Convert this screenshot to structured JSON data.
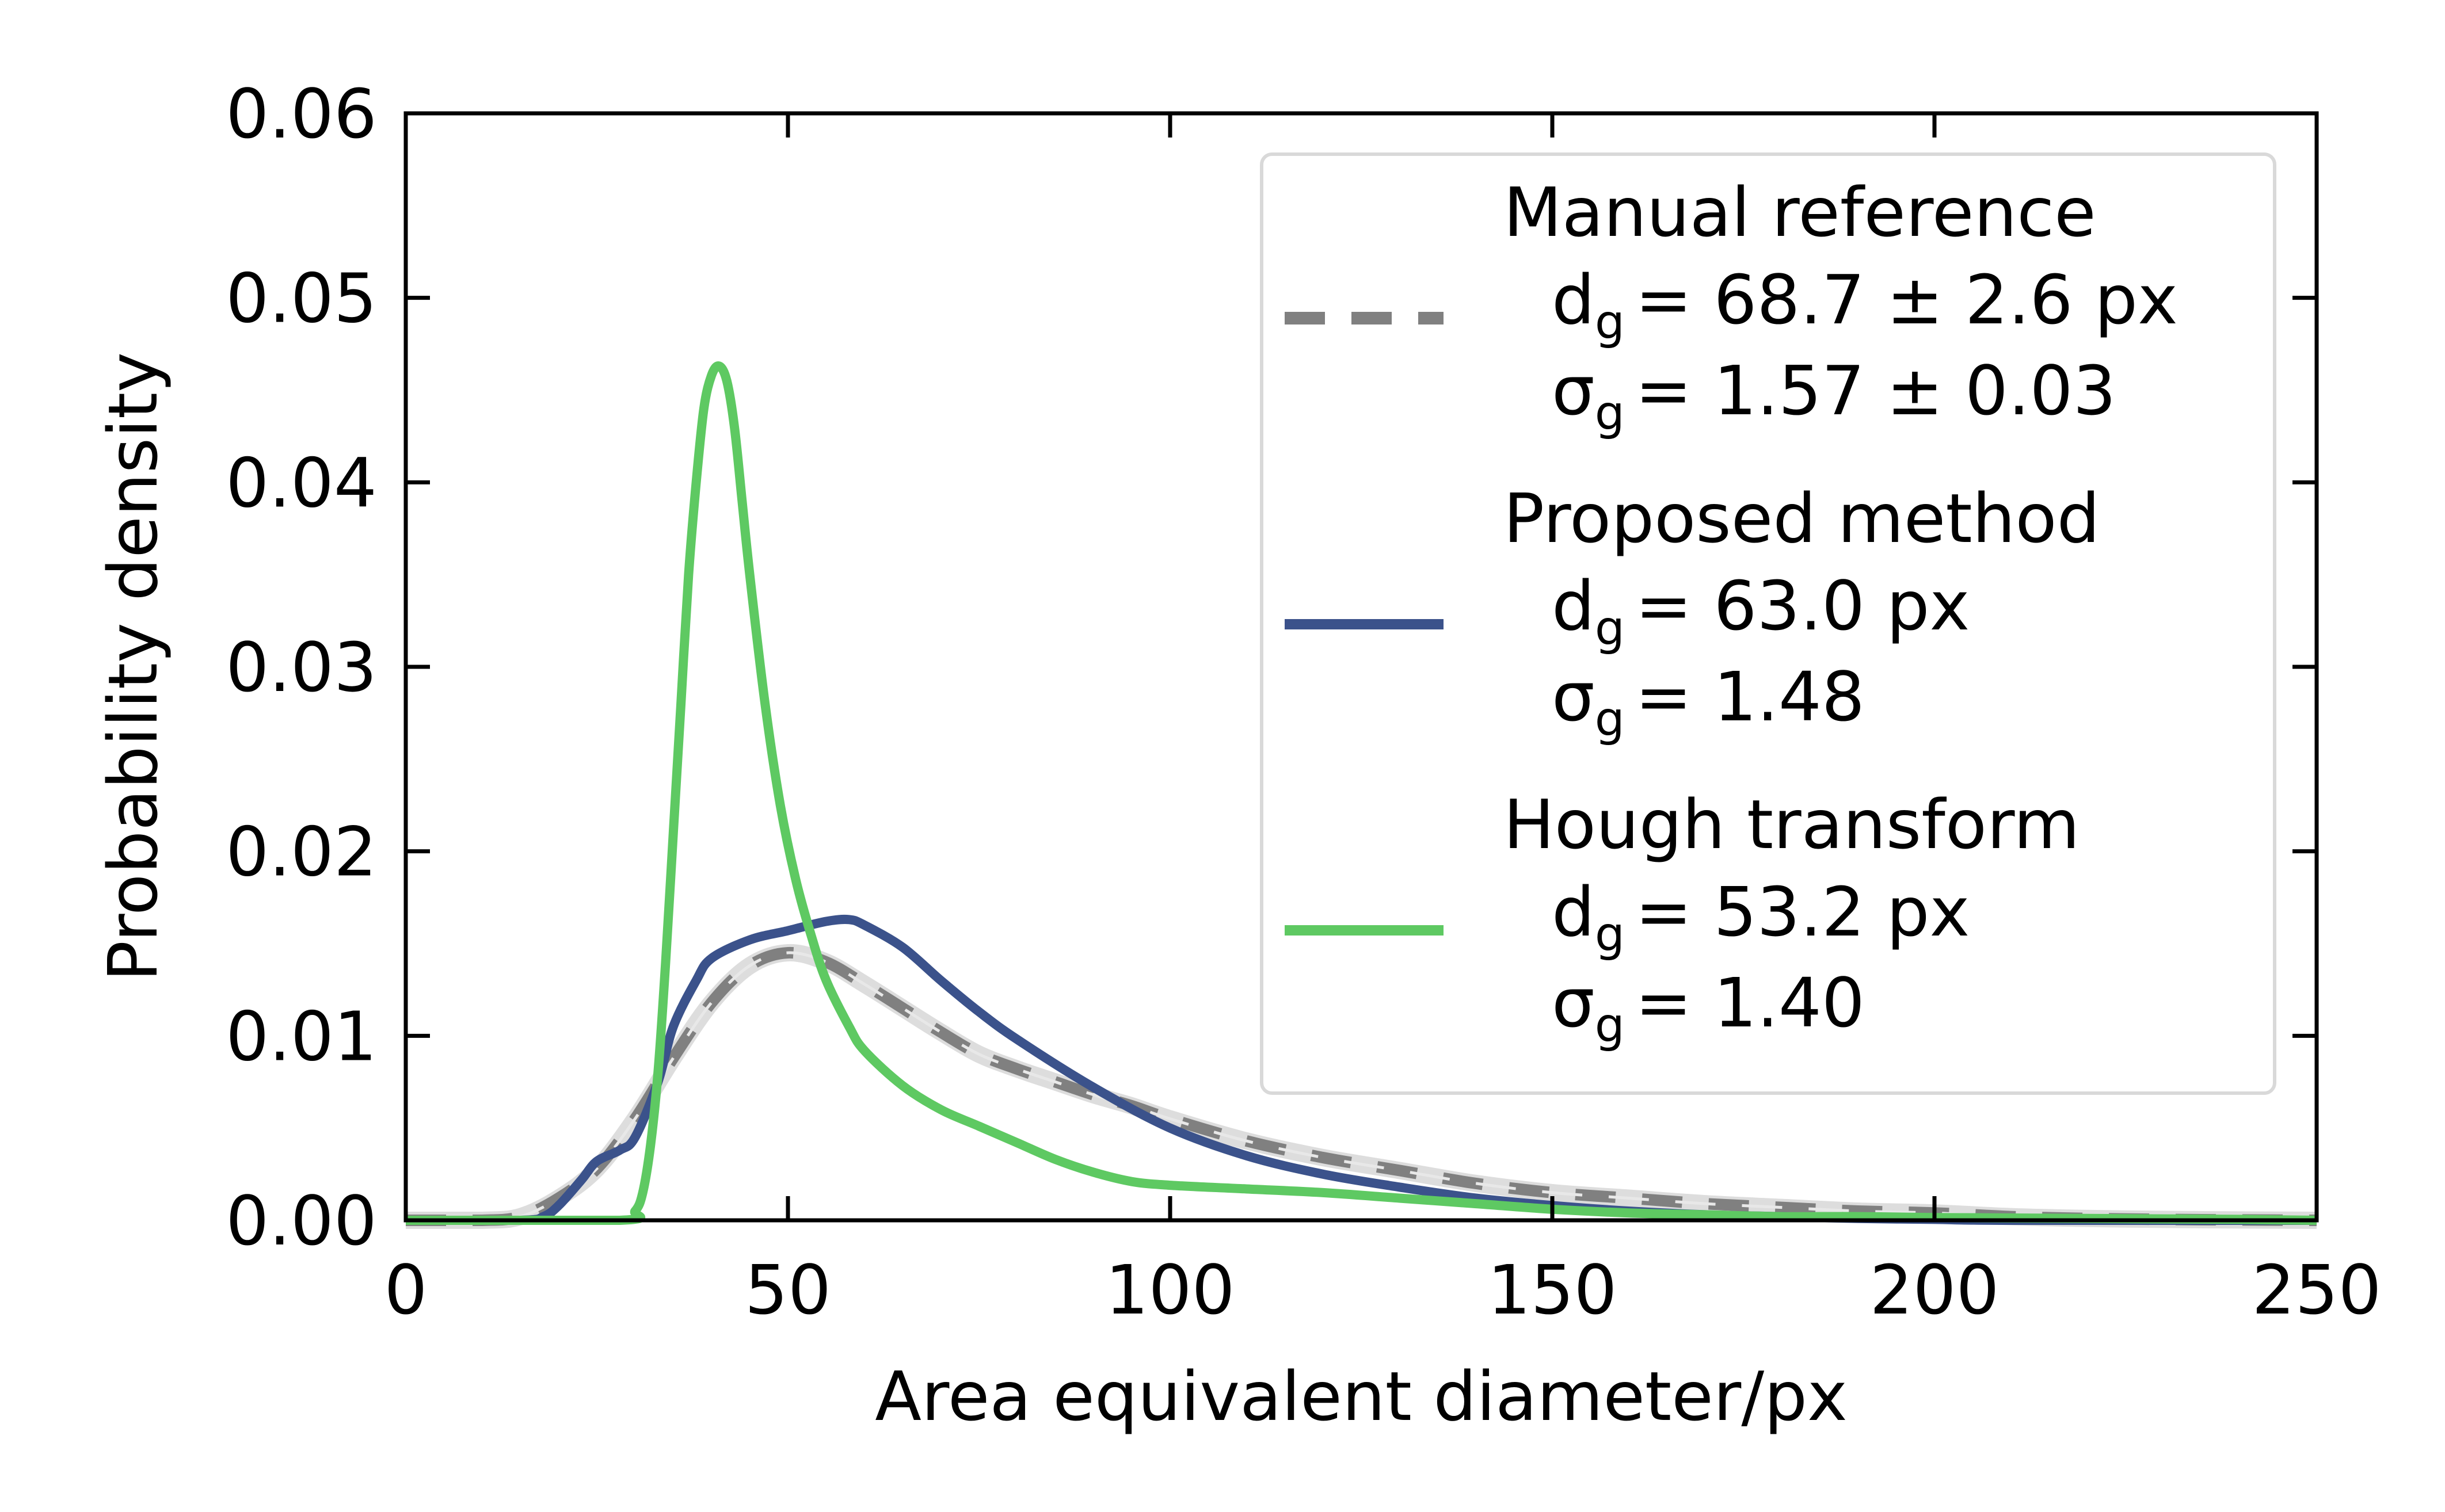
{
  "chart_data": {
    "type": "line",
    "xlabel": "Area equivalent diameter/px",
    "ylabel": "Probability density",
    "xlim": [
      0,
      250
    ],
    "ylim": [
      0,
      0.06
    ],
    "x_ticks": [
      "0",
      "50",
      "100",
      "150",
      "200",
      "250"
    ],
    "y_ticks": [
      "0.00",
      "0.01",
      "0.02",
      "0.03",
      "0.04",
      "0.05",
      "0.06"
    ],
    "grid": false,
    "legend_position": "top-right",
    "series": [
      {
        "name": "Manual reference",
        "style": "dashed",
        "color": "#808080",
        "legend_lines": [
          "d_g = 68.7 ± 2.6 px",
          "σ_g = 1.57 ± 0.03"
        ],
        "points": [
          [
            0,
            0
          ],
          [
            10,
            0
          ],
          [
            15,
            0.0002
          ],
          [
            20,
            0.0012
          ],
          [
            25,
            0.0028
          ],
          [
            30,
            0.0055
          ],
          [
            35,
            0.0088
          ],
          [
            40,
            0.0118
          ],
          [
            45,
            0.0138
          ],
          [
            50,
            0.0145
          ],
          [
            55,
            0.014
          ],
          [
            60,
            0.0128
          ],
          [
            65,
            0.0115
          ],
          [
            70,
            0.0102
          ],
          [
            75,
            0.009
          ],
          [
            80,
            0.0082
          ],
          [
            85,
            0.0075
          ],
          [
            90,
            0.0068
          ],
          [
            95,
            0.0062
          ],
          [
            100,
            0.0055
          ],
          [
            110,
            0.0043
          ],
          [
            120,
            0.0034
          ],
          [
            130,
            0.0027
          ],
          [
            140,
            0.002
          ],
          [
            150,
            0.0015
          ],
          [
            160,
            0.0012
          ],
          [
            170,
            0.0009
          ],
          [
            180,
            0.0007
          ],
          [
            190,
            0.0005
          ],
          [
            200,
            0.0004
          ],
          [
            210,
            0.0002
          ],
          [
            220,
            0.0001
          ],
          [
            230,
            5e-05
          ],
          [
            240,
            2e-05
          ],
          [
            250,
            0
          ]
        ]
      },
      {
        "name": "Proposed method",
        "style": "solid",
        "color": "#3b528b",
        "legend_lines": [
          "d_g = 63.0 px",
          "σ_g = 1.48"
        ],
        "points": [
          [
            0,
            0
          ],
          [
            15,
            0
          ],
          [
            18,
            0.0002
          ],
          [
            20,
            0.0008
          ],
          [
            23,
            0.0022
          ],
          [
            25,
            0.0032
          ],
          [
            28,
            0.0038
          ],
          [
            30,
            0.0045
          ],
          [
            33,
            0.0075
          ],
          [
            35,
            0.0105
          ],
          [
            38,
            0.013
          ],
          [
            40,
            0.0142
          ],
          [
            45,
            0.0152
          ],
          [
            50,
            0.0157
          ],
          [
            55,
            0.0162
          ],
          [
            58,
            0.0163
          ],
          [
            60,
            0.016
          ],
          [
            65,
            0.0148
          ],
          [
            70,
            0.013
          ],
          [
            75,
            0.0113
          ],
          [
            80,
            0.0098
          ],
          [
            90,
            0.0072
          ],
          [
            100,
            0.005
          ],
          [
            110,
            0.0035
          ],
          [
            120,
            0.0025
          ],
          [
            130,
            0.0018
          ],
          [
            140,
            0.0012
          ],
          [
            150,
            0.0008
          ],
          [
            160,
            0.0005
          ],
          [
            170,
            0.0003
          ],
          [
            180,
            0.0002
          ],
          [
            190,
            0.0001
          ],
          [
            200,
            5e-05
          ],
          [
            210,
            0
          ],
          [
            250,
            0
          ]
        ]
      },
      {
        "name": "Hough transform",
        "style": "solid",
        "color": "#5ec962",
        "legend_lines": [
          "d_g = 53.2 px",
          "σ_g = 1.40"
        ],
        "points": [
          [
            0,
            0
          ],
          [
            28,
            0
          ],
          [
            30,
            0.0005
          ],
          [
            31,
            0.0015
          ],
          [
            32,
            0.004
          ],
          [
            33,
            0.008
          ],
          [
            34,
            0.014
          ],
          [
            35,
            0.021
          ],
          [
            36,
            0.028
          ],
          [
            37,
            0.035
          ],
          [
            38,
            0.04
          ],
          [
            39,
            0.044
          ],
          [
            40,
            0.0458
          ],
          [
            41,
            0.0463
          ],
          [
            42,
            0.0455
          ],
          [
            43,
            0.043
          ],
          [
            44,
            0.039
          ],
          [
            45,
            0.035
          ],
          [
            47,
            0.028
          ],
          [
            49,
            0.0225
          ],
          [
            51,
            0.0185
          ],
          [
            53,
            0.0155
          ],
          [
            55,
            0.013
          ],
          [
            58,
            0.0105
          ],
          [
            60,
            0.0092
          ],
          [
            65,
            0.0073
          ],
          [
            70,
            0.006
          ],
          [
            75,
            0.0051
          ],
          [
            80,
            0.0042
          ],
          [
            85,
            0.0033
          ],
          [
            90,
            0.0026
          ],
          [
            95,
            0.0021
          ],
          [
            100,
            0.0019
          ],
          [
            110,
            0.0017
          ],
          [
            120,
            0.0015
          ],
          [
            130,
            0.0012
          ],
          [
            140,
            0.0009
          ],
          [
            150,
            0.0006
          ],
          [
            160,
            0.0004
          ],
          [
            170,
            0.0003
          ],
          [
            180,
            0.0002
          ],
          [
            190,
            0.0002
          ],
          [
            200,
            0.00015
          ],
          [
            220,
            0.0001
          ],
          [
            240,
            5e-05
          ],
          [
            250,
            0
          ]
        ]
      }
    ]
  },
  "legend": {
    "entries": [
      {
        "title": "Manual reference",
        "lines": [
          {
            "sym": "d",
            "eq": "= 68.7 ± 2.6 px"
          },
          {
            "sym": "σ",
            "eq": "= 1.57 ± 0.03"
          }
        ]
      },
      {
        "title": "Proposed method",
        "lines": [
          {
            "sym": "d",
            "eq": "= 63.0 px"
          },
          {
            "sym": "σ",
            "eq": "= 1.48"
          }
        ]
      },
      {
        "title": "Hough transform",
        "lines": [
          {
            "sym": "d",
            "eq": "= 53.2 px"
          },
          {
            "sym": "σ",
            "eq": "= 1.40"
          }
        ]
      }
    ],
    "subscript": "g"
  }
}
